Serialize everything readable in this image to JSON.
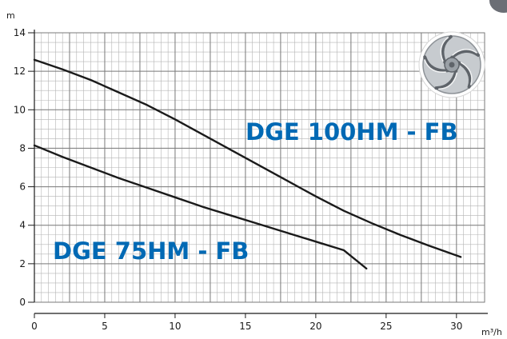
{
  "chart_data": {
    "type": "line",
    "title": "",
    "xlabel": "",
    "ylabel": "",
    "x_unit": "m³/h",
    "y_unit": "m",
    "xlim": [
      0,
      32
    ],
    "ylim": [
      0,
      14
    ],
    "x_ticks": [
      0,
      5,
      10,
      15,
      20,
      25,
      30
    ],
    "y_ticks": [
      0,
      2,
      4,
      6,
      8,
      10,
      12,
      14
    ],
    "grid": true,
    "label_color": "#0069b4",
    "series": [
      {
        "name": "DGE 100HM - FB",
        "color": "#1a1a1a",
        "points": [
          [
            0,
            12.6
          ],
          [
            2,
            12.1
          ],
          [
            4,
            11.55
          ],
          [
            6,
            10.9
          ],
          [
            8,
            10.25
          ],
          [
            10,
            9.5
          ],
          [
            12,
            8.7
          ],
          [
            14,
            7.9
          ],
          [
            16,
            7.1
          ],
          [
            18,
            6.3
          ],
          [
            20,
            5.5
          ],
          [
            22,
            4.75
          ],
          [
            24,
            4.1
          ],
          [
            26,
            3.5
          ],
          [
            28,
            2.95
          ],
          [
            30.3,
            2.35
          ]
        ]
      },
      {
        "name": "DGE 75HM - FB",
        "color": "#1a1a1a",
        "points": [
          [
            0,
            8.15
          ],
          [
            2,
            7.55
          ],
          [
            4,
            7.0
          ],
          [
            6,
            6.45
          ],
          [
            8,
            5.95
          ],
          [
            10,
            5.45
          ],
          [
            12,
            4.95
          ],
          [
            14,
            4.5
          ],
          [
            16,
            4.05
          ],
          [
            18,
            3.6
          ],
          [
            20,
            3.15
          ],
          [
            22,
            2.7
          ],
          [
            23.6,
            1.75
          ]
        ]
      }
    ]
  },
  "icons": {
    "impeller": "impeller-icon",
    "corner": "corner-badge"
  }
}
